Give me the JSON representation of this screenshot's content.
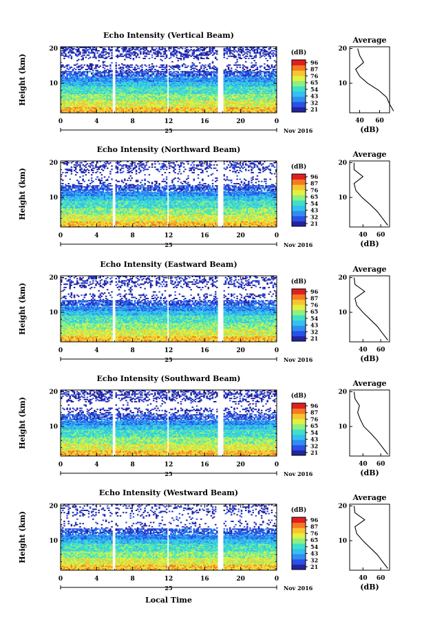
{
  "colorbar": {
    "unit": "(dB)",
    "ticks": [
      "96",
      "87",
      "76",
      "65",
      "54",
      "43",
      "32",
      "21"
    ],
    "min": 21,
    "max": 96,
    "colors": [
      "#24249f",
      "#2b50e8",
      "#2f8ef0",
      "#34c0f0",
      "#3fe0c8",
      "#8ef080",
      "#e2f040",
      "#f8c430",
      "#f57a22",
      "#e02020"
    ]
  },
  "shared": {
    "x_ticks": [
      "0",
      "4",
      "8",
      "12",
      "16",
      "20",
      "0"
    ],
    "date_mark": "25",
    "date_label": "Nov 2016",
    "y_label": "Height (km)",
    "y_ticks": [
      "20",
      "10"
    ],
    "avg_title": "Average",
    "avg_xlabel": "(dB)",
    "avg_ticks": [
      "40",
      "60"
    ],
    "avg_y_ticks": [
      "20",
      "10"
    ],
    "x_axis_label": "Local Time"
  },
  "panels": [
    {
      "title": "Echo Intensity (Vertical Beam)"
    },
    {
      "title": "Echo Intensity (Northward Beam)"
    },
    {
      "title": "Echo Intensity (Eastward Beam)"
    },
    {
      "title": "Echo Intensity (Southward Beam)"
    },
    {
      "title": "Echo Intensity (Westward Beam)"
    }
  ],
  "chart_data": [
    {
      "type": "heatmap",
      "title": "Echo Intensity (Vertical Beam)",
      "xlabel": "Local Time",
      "ylabel": "Height (km)",
      "x_range_hours": [
        0,
        24
      ],
      "ylim_km": [
        1.5,
        20.5
      ],
      "colorbar_range_db": [
        21,
        96
      ],
      "data_gaps_hours": [
        [
          5.8,
          6.0
        ],
        [
          11.8,
          12.0
        ],
        [
          17.4,
          18.0
        ]
      ],
      "profile_heights_km": [
        20,
        18,
        16,
        14,
        12,
        10,
        8,
        6,
        4,
        2
      ],
      "profile_db": [
        38,
        40,
        44,
        36,
        40,
        48,
        59,
        67,
        70,
        74
      ],
      "avg_xlim": [
        30,
        70
      ]
    },
    {
      "type": "heatmap",
      "title": "Echo Intensity (Northward Beam)",
      "xlabel": "Local Time",
      "ylabel": "Height (km)",
      "x_range_hours": [
        0,
        24
      ],
      "ylim_km": [
        1.5,
        20.5
      ],
      "colorbar_range_db": [
        21,
        96
      ],
      "data_gaps_hours": [
        [
          5.8,
          6.0
        ],
        [
          11.8,
          12.0
        ],
        [
          17.4,
          18.0
        ]
      ],
      "profile_heights_km": [
        20,
        18,
        16,
        14,
        12,
        10,
        8,
        6,
        4,
        2
      ],
      "profile_db": [
        30,
        30,
        40,
        30,
        32,
        39,
        48,
        56,
        62,
        68
      ],
      "avg_xlim": [
        25,
        70
      ]
    },
    {
      "type": "heatmap",
      "title": "Echo Intensity (Eastward Beam)",
      "xlabel": "Local Time",
      "ylabel": "Height (km)",
      "x_range_hours": [
        0,
        24
      ],
      "ylim_km": [
        1.5,
        20.5
      ],
      "colorbar_range_db": [
        21,
        96
      ],
      "data_gaps_hours": [
        [
          5.8,
          6.0
        ],
        [
          11.8,
          12.0
        ],
        [
          17.4,
          18.0
        ]
      ],
      "profile_heights_km": [
        20,
        18,
        16,
        14,
        12,
        10,
        8,
        6,
        4,
        2
      ],
      "profile_db": [
        30,
        31,
        42,
        31,
        33,
        40,
        48,
        56,
        62,
        68
      ],
      "avg_xlim": [
        25,
        70
      ]
    },
    {
      "type": "heatmap",
      "title": "Echo Intensity (Southward Beam)",
      "xlabel": "Local Time",
      "ylabel": "Height (km)",
      "x_range_hours": [
        0,
        24
      ],
      "ylim_km": [
        1.5,
        20.5
      ],
      "colorbar_range_db": [
        21,
        96
      ],
      "data_gaps_hours": [
        [
          5.8,
          6.0
        ],
        [
          11.8,
          12.0
        ],
        [
          17.4,
          18.0
        ]
      ],
      "profile_heights_km": [
        20,
        18,
        16,
        14,
        12,
        10,
        8,
        6,
        4,
        2
      ],
      "profile_db": [
        30,
        31,
        36,
        34,
        37,
        41,
        49,
        56,
        62,
        68
      ],
      "avg_xlim": [
        25,
        70
      ]
    },
    {
      "type": "heatmap",
      "title": "Echo Intensity (Westward Beam)",
      "xlabel": "Local Time",
      "ylabel": "Height (km)",
      "x_range_hours": [
        0,
        24
      ],
      "ylim_km": [
        1.5,
        20.5
      ],
      "colorbar_range_db": [
        21,
        96
      ],
      "data_gaps_hours": [
        [
          5.8,
          6.0
        ],
        [
          11.8,
          12.0
        ],
        [
          17.4,
          18.0
        ]
      ],
      "profile_heights_km": [
        20,
        18,
        16,
        14,
        12,
        10,
        8,
        6,
        4,
        2
      ],
      "profile_db": [
        30,
        31,
        42,
        31,
        33,
        40,
        48,
        56,
        62,
        68
      ],
      "avg_xlim": [
        25,
        70
      ]
    }
  ]
}
